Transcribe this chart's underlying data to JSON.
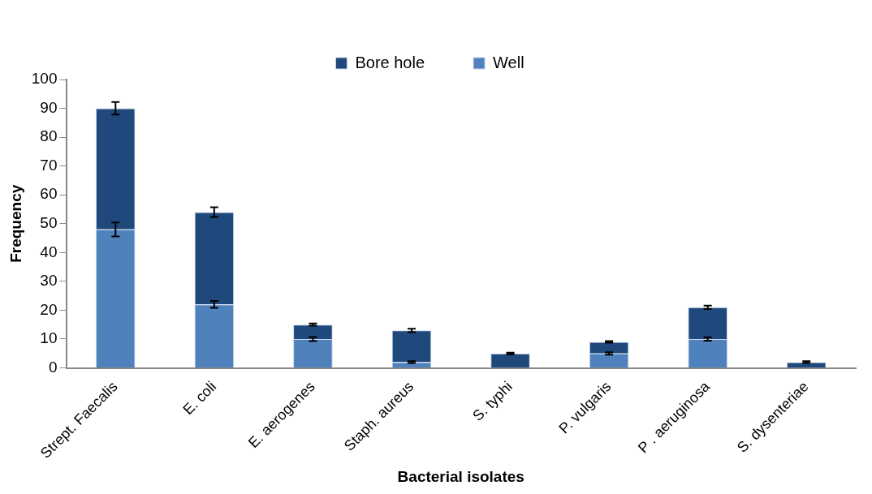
{
  "chart_data": {
    "type": "bar",
    "stacked": true,
    "xlabel": "Bacterial isolates",
    "ylabel": "Frequency",
    "categories": [
      "Strept. Faecalis",
      "E. coli",
      "E. aerogenes",
      "Staph. aureus",
      "S. typhi",
      "P. vulgaris",
      "P . aeruginosa",
      "S. dysenteriae"
    ],
    "series": [
      {
        "name": "Well",
        "color": "#4f81bd",
        "values": [
          48,
          22,
          10,
          2,
          0,
          5,
          10,
          0
        ],
        "errors": [
          2.4,
          1.2,
          0.7,
          0.3,
          null,
          0.4,
          0.6,
          null
        ]
      },
      {
        "name": "Bore hole",
        "color": "#1f497d",
        "values": [
          42,
          32,
          5,
          11,
          5,
          4,
          11,
          2
        ],
        "errors": [
          2.2,
          1.7,
          0.4,
          0.6,
          0.3,
          0.3,
          0.6,
          0.3
        ]
      }
    ],
    "ylim": [
      0,
      100
    ],
    "yticks": [
      0,
      10,
      20,
      30,
      40,
      50,
      60,
      70,
      80,
      90,
      100
    ],
    "grid": false,
    "legend": "top"
  }
}
